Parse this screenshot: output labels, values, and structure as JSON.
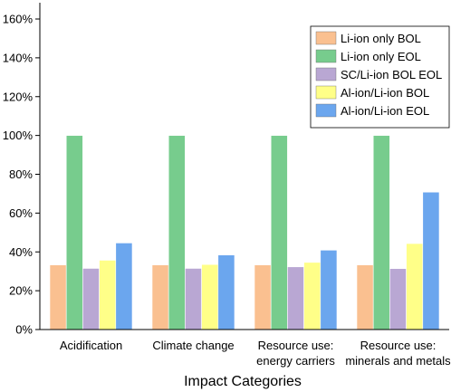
{
  "chart_data": {
    "type": "bar",
    "xlabel": "Impact Categories",
    "ylabel": "",
    "ylim": [
      0,
      160
    ],
    "ytick_step": 20,
    "ytick_suffix": "%",
    "grid": false,
    "legend_position": "top-right",
    "categories": [
      [
        "Acidification"
      ],
      [
        "Climate change"
      ],
      [
        "Resource use:",
        "energy carriers"
      ],
      [
        "Resource use:",
        "minerals and metals"
      ]
    ],
    "series": [
      {
        "name": "Li-ion only BOL",
        "color": "#fac090",
        "values": [
          33.3,
          33.3,
          33.3,
          33.3
        ]
      },
      {
        "name": "Li-ion only EOL",
        "color": "#77cc8d",
        "values": [
          100,
          100,
          100,
          100
        ]
      },
      {
        "name": "SC/Li-ion BOL EOL",
        "color": "#b9a7d3",
        "values": [
          31.5,
          31.5,
          32.3,
          31.4
        ]
      },
      {
        "name": "Al-ion/Li-ion BOL",
        "color": "#ffff88",
        "values": [
          35.7,
          33.5,
          34.6,
          44.3
        ]
      },
      {
        "name": "Al-ion/Li-ion EOL",
        "color": "#6ba6ee",
        "values": [
          44.6,
          38.4,
          40.9,
          70.8
        ]
      }
    ]
  }
}
